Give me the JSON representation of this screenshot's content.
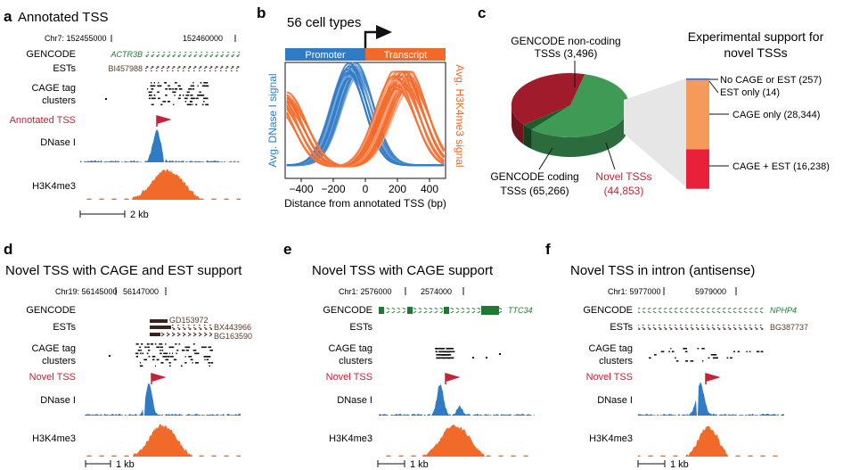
{
  "panels": {
    "a": {
      "letter": "a",
      "title": "Annotated TSS",
      "coord_chr": "Chr7: 152455000",
      "coord2": "152460000",
      "row_labels": [
        "GENCODE",
        "ESTs",
        "CAGE tag",
        "clusters",
        "Annotated TSS",
        "DNase I",
        "H3K4me3"
      ],
      "gene": "ACTR3B",
      "ests": [
        "BI457988"
      ],
      "scale": "2 kb"
    },
    "b": {
      "letter": "b",
      "title": "56 cell types",
      "promoter": "Promoter",
      "transcript": "Transcript",
      "ylabel_left": "Avg. DNase I  signal",
      "ylabel_right": "Avg. H3K4me3 signal",
      "xlabel": "Distance from annotated TSS (bp)",
      "xticks": [
        "−400",
        "−200",
        "0",
        "200",
        "400"
      ]
    },
    "c": {
      "letter": "c",
      "right_title_1": "Experimental support for",
      "right_title_2": "novel TSSs",
      "labels": {
        "noncoding_1": "GENCODE non-coding",
        "noncoding_2": "TSSs (3,496)",
        "coding_1": "GENCODE coding",
        "coding_2": "TSSs (65,266)",
        "novel_1": "Novel TSSs",
        "novel_2": "(44,853)",
        "no_support": "No CAGE or EST (257)",
        "est_only": "EST only (14)",
        "cage_only": "CAGE only (28,344)",
        "cage_est": "CAGE + EST (16,238)"
      }
    },
    "d": {
      "letter": "d",
      "title": "Novel TSS with CAGE and EST support",
      "coord_chr": "Chr19: 56145000",
      "coord2": "56147000",
      "row_labels": [
        "GENCODE",
        "ESTs",
        "CAGE tag",
        "clusters",
        "Novel TSS",
        "DNase I",
        "H3K4me3"
      ],
      "ests": [
        "GD153972",
        "BX443966",
        "BG163590"
      ],
      "scale": "1 kb"
    },
    "e": {
      "letter": "e",
      "title": "Novel TSS with CAGE support",
      "coord_chr": "Chr1: 2576000",
      "coord2": "2574000",
      "row_labels": [
        "GENCODE",
        "ESTs",
        "CAGE tag",
        "clusters",
        "Novel TSS",
        "DNase I",
        "H3K4me3"
      ],
      "gene": "TTC34",
      "scale": "1 kb"
    },
    "f": {
      "letter": "f",
      "title": "Novel TSS in intron (antisense)",
      "coord_chr": "Chr1: 5977000",
      "coord2": "5979000",
      "row_labels": [
        "GENCODE",
        "ESTs",
        "CAGE tag",
        "clusters",
        "Novel TSS",
        "DNase I",
        "H3K4me3"
      ],
      "gene": "NPHP4",
      "ests": [
        "BG387737"
      ],
      "scale": "1 kb"
    }
  },
  "chart_data": [
    {
      "type": "pie",
      "categories": [
        "GENCODE coding TSSs",
        "GENCODE non-coding TSSs",
        "Novel TSSs"
      ],
      "values": [
        65266,
        3496,
        44853
      ],
      "colors": [
        "#3f9a56",
        "#1a5e2c",
        "#a01c2c"
      ]
    },
    {
      "type": "bar",
      "categories": [
        "No CAGE or EST",
        "EST only",
        "CAGE only",
        "CAGE + EST"
      ],
      "values": [
        257,
        14,
        28344,
        16238
      ],
      "colors": [
        "#3a57a8",
        "#9b7fb8",
        "#f59a5a",
        "#e8203a"
      ]
    },
    {
      "type": "line",
      "x": [
        -500,
        -400,
        -200,
        0,
        200,
        400,
        500
      ],
      "xlim": [
        -500,
        500
      ],
      "series": [
        {
          "values": [
            0.15,
            0.3,
            0.75,
            0.6,
            0.35,
            0.2,
            0.12
          ],
          "color": "#2f7bc6"
        },
        {
          "values": [
            0.5,
            0.4,
            0.2,
            0.15,
            0.9,
            0.85,
            0.65
          ],
          "color": "#f26a2a"
        }
      ]
    }
  ],
  "colors": {
    "dnase": "#2f7bc6",
    "h3k4me3": "#f26a2a",
    "gencode": "#1e7a32",
    "tss_red": "#c4233a"
  }
}
